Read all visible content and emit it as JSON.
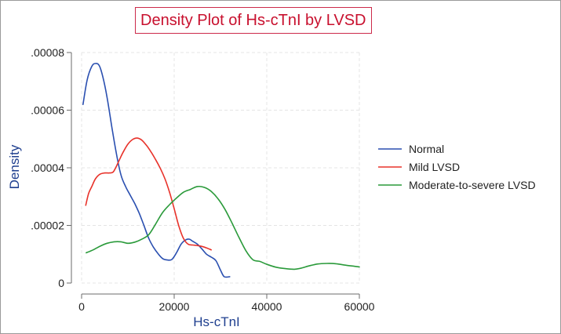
{
  "chart_data": {
    "type": "line",
    "title": "Density Plot of Hs-cTnI by LVSD",
    "xlabel": "Hs-cTnI",
    "ylabel": "Density",
    "xlim": [
      0,
      60000
    ],
    "ylim": [
      0,
      8e-05
    ],
    "xticks": [
      0,
      20000,
      40000,
      60000
    ],
    "xtick_labels": [
      "0",
      "20000",
      "40000",
      "60000"
    ],
    "yticks": [
      0,
      2e-05,
      4e-05,
      6e-05,
      8e-05
    ],
    "ytick_labels": [
      "0",
      ".00002",
      ".00004",
      ".00006",
      ".00008"
    ],
    "grid": true,
    "legend_position": "right",
    "series": [
      {
        "name": "Normal",
        "color": "#2a4fb0",
        "x": [
          300,
          1200,
          2200,
          3000,
          3800,
          4600,
          5500,
          6500,
          7500,
          8500,
          9500,
          10500,
          11500,
          12500,
          13500,
          14500,
          15500,
          16500,
          17500,
          18500,
          19500,
          20500,
          21500,
          22500,
          23300,
          24000,
          25000,
          26000,
          27000,
          28000,
          29000,
          30000,
          30800,
          32000
        ],
        "values": [
          6.2e-05,
          7.05e-05,
          7.52e-05,
          7.62e-05,
          7.55e-05,
          7.15e-05,
          6.45e-05,
          5.45e-05,
          4.5e-05,
          3.75e-05,
          3.35e-05,
          3.05e-05,
          2.75e-05,
          2.4e-05,
          1.98e-05,
          1.55e-05,
          1.25e-05,
          1.02e-05,
          8.5e-06,
          8e-06,
          8.2e-06,
          1.05e-05,
          1.35e-05,
          1.5e-05,
          1.52e-05,
          1.45e-05,
          1.35e-05,
          1.18e-05,
          1e-05,
          9e-06,
          7.8e-06,
          4.5e-06,
          2.2e-06,
          2.2e-06
        ]
      },
      {
        "name": "Mild LVSD",
        "color": "#e8322a",
        "x": [
          900,
          1500,
          2200,
          3000,
          4000,
          5000,
          6000,
          6800,
          7500,
          8300,
          9000,
          10000,
          11000,
          12000,
          13000,
          14000,
          15000,
          16000,
          17000,
          18000,
          19000,
          20000,
          21000,
          22000,
          23000,
          24000,
          25000,
          26000,
          27000,
          28000
        ],
        "values": [
          2.7e-05,
          3.1e-05,
          3.35e-05,
          3.62e-05,
          3.78e-05,
          3.82e-05,
          3.82e-05,
          3.85e-05,
          4.05e-05,
          4.32e-05,
          4.55e-05,
          4.82e-05,
          4.98e-05,
          5.03e-05,
          4.96e-05,
          4.78e-05,
          4.55e-05,
          4.28e-05,
          3.98e-05,
          3.62e-05,
          3.15e-05,
          2.58e-05,
          1.98e-05,
          1.55e-05,
          1.35e-05,
          1.32e-05,
          1.3e-05,
          1.27e-05,
          1.22e-05,
          1.15e-05
        ]
      },
      {
        "name": "Moderate-to-severe LVSD",
        "color": "#2a9a3a",
        "x": [
          1000,
          2500,
          4000,
          5500,
          7000,
          8500,
          10000,
          11500,
          13000,
          14500,
          16000,
          17500,
          19000,
          20500,
          22000,
          23500,
          25000,
          26500,
          28000,
          29500,
          31000,
          32500,
          34000,
          35500,
          37000,
          38500,
          40000,
          42000,
          44000,
          46000,
          47500,
          49000,
          51000,
          53000,
          55000,
          57000,
          59000,
          60000
        ],
        "values": [
          1.05e-05,
          1.15e-05,
          1.28e-05,
          1.38e-05,
          1.43e-05,
          1.43e-05,
          1.38e-05,
          1.42e-05,
          1.52e-05,
          1.68e-05,
          2.05e-05,
          2.45e-05,
          2.72e-05,
          2.95e-05,
          3.15e-05,
          3.25e-05,
          3.35e-05,
          3.32e-05,
          3.18e-05,
          2.92e-05,
          2.55e-05,
          2.08e-05,
          1.58e-05,
          1.12e-05,
          8.1e-06,
          7.5e-06,
          6.5e-06,
          5.5e-06,
          5e-06,
          4.8e-06,
          5.2e-06,
          5.9e-06,
          6.6e-06,
          6.8e-06,
          6.7e-06,
          6.2e-06,
          5.8e-06,
          5.6e-06
        ]
      }
    ]
  }
}
